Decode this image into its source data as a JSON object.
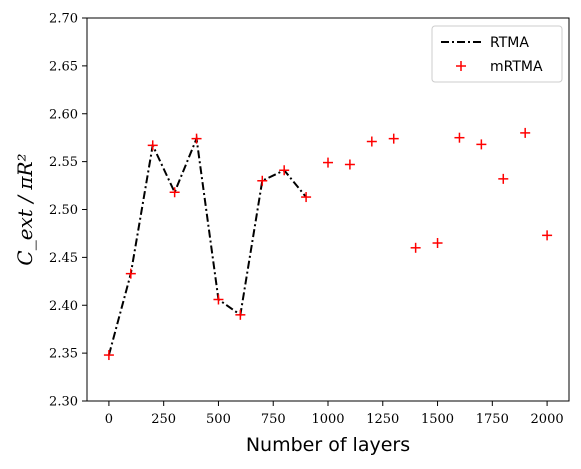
{
  "chart_data": {
    "type": "line",
    "xlabel": "Number of layers",
    "ylabel": "C_ext / πR²",
    "xlim": [
      -100,
      2100
    ],
    "ylim": [
      2.3,
      2.7
    ],
    "xticks": [
      0,
      250,
      500,
      750,
      1000,
      1250,
      1500,
      1750,
      2000
    ],
    "yticks": [
      2.3,
      2.35,
      2.4,
      2.45,
      2.5,
      2.55,
      2.6,
      2.65,
      2.7
    ],
    "grid": false,
    "legend": "top-right",
    "series": [
      {
        "name": "RTMA",
        "style": "dash-dot",
        "color": "#000000",
        "x": [
          0,
          100,
          200,
          300,
          400,
          500,
          600,
          700,
          800,
          900
        ],
        "values": [
          2.348,
          2.433,
          2.567,
          2.518,
          2.574,
          2.406,
          2.39,
          2.53,
          2.541,
          2.513
        ]
      },
      {
        "name": "mRTMA",
        "style": "plus-marker",
        "color": "#ff0000",
        "x": [
          0,
          100,
          200,
          300,
          400,
          500,
          600,
          700,
          800,
          900,
          1000,
          1100,
          1200,
          1300,
          1400,
          1500,
          1600,
          1700,
          1800,
          1900,
          2000
        ],
        "values": [
          2.348,
          2.433,
          2.567,
          2.518,
          2.574,
          2.406,
          2.39,
          2.53,
          2.541,
          2.513,
          2.549,
          2.547,
          2.571,
          2.574,
          2.46,
          2.465,
          2.575,
          2.568,
          2.532,
          2.58,
          2.473
        ]
      }
    ]
  }
}
